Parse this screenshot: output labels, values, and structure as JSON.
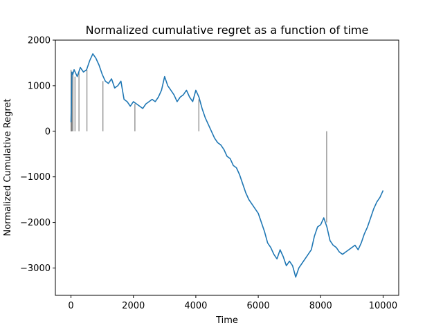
{
  "chart_data": {
    "type": "line",
    "title": "Normalized cumulative regret as a function of time",
    "xlabel": "Time",
    "ylabel": "Normalized Cumulative Regret",
    "xlim": [
      -500,
      10500
    ],
    "ylim": [
      -3600,
      2000
    ],
    "xticks": [
      0,
      2000,
      4000,
      6000,
      8000,
      10000
    ],
    "yticks": [
      -3000,
      -2000,
      -1000,
      0,
      1000,
      2000
    ],
    "xtick_labels": [
      "0",
      "2000",
      "4000",
      "6000",
      "8000",
      "10000"
    ],
    "ytick_labels": [
      "−3000",
      "−2000",
      "−1000",
      "0",
      "1000",
      "2000"
    ],
    "grid": false,
    "line_color": "#1f77b4",
    "restart_color": "#808080",
    "series": [
      {
        "x": [
          0,
          30,
          60,
          100,
          200,
          300,
          400,
          500,
          600,
          700,
          750,
          800,
          900,
          1000,
          1100,
          1200,
          1300,
          1400,
          1500,
          1600,
          1700,
          1800,
          1900,
          2000,
          2100,
          2200,
          2300,
          2400,
          2500,
          2600,
          2700,
          2800,
          2900,
          3000,
          3100,
          3200,
          3300,
          3400,
          3500,
          3600,
          3700,
          3800,
          3900,
          4000,
          4100,
          4200,
          4300,
          4400,
          4500,
          4600,
          4700,
          4800,
          4900,
          5000,
          5100,
          5200,
          5300,
          5400,
          5500,
          5600,
          5700,
          5800,
          5900,
          6000,
          6100,
          6200,
          6300,
          6400,
          6500,
          6600,
          6700,
          6800,
          6900,
          7000,
          7100,
          7200,
          7300,
          7400,
          7500,
          7600,
          7700,
          7800,
          7900,
          8000,
          8100,
          8200,
          8300,
          8400,
          8500,
          8600,
          8700,
          8800,
          8900,
          9000,
          9100,
          9200,
          9300,
          9400,
          9500,
          9600,
          9700,
          9800,
          9900,
          10000
        ],
        "y": [
          200,
          1300,
          1250,
          1350,
          1200,
          1400,
          1300,
          1350,
          1550,
          1700,
          1650,
          1600,
          1450,
          1250,
          1100,
          1050,
          1150,
          950,
          1000,
          1100,
          700,
          650,
          550,
          650,
          600,
          550,
          500,
          600,
          650,
          700,
          650,
          750,
          900,
          1200,
          1000,
          900,
          800,
          650,
          750,
          800,
          900,
          750,
          650,
          900,
          750,
          500,
          300,
          150,
          0,
          -150,
          -250,
          -300,
          -400,
          -550,
          -600,
          -750,
          -800,
          -950,
          -1150,
          -1350,
          -1500,
          -1600,
          -1700,
          -1800,
          -2000,
          -2200,
          -2450,
          -2550,
          -2700,
          -2800,
          -2600,
          -2750,
          -2950,
          -2850,
          -2950,
          -3200,
          -3000,
          -2900,
          -2800,
          -2700,
          -2600,
          -2300,
          -2100,
          -2050,
          -1900,
          -2100,
          -2400,
          -2500,
          -2550,
          -2650,
          -2700,
          -2650,
          -2600,
          -2550,
          -2500,
          -2600,
          -2450,
          -2250,
          -2100,
          -1900,
          -1700,
          -1550,
          -1450,
          -1300
        ],
        "restarts": [
          {
            "x": 1,
            "y": 1350
          },
          {
            "x": 2,
            "y": 1300
          },
          {
            "x": 4,
            "y": 1250
          },
          {
            "x": 8,
            "y": 1200
          },
          {
            "x": 16,
            "y": 1150
          },
          {
            "x": 32,
            "y": 1200
          },
          {
            "x": 64,
            "y": 1250
          },
          {
            "x": 128,
            "y": 1200
          },
          {
            "x": 256,
            "y": 1300
          },
          {
            "x": 512,
            "y": 1350
          },
          {
            "x": 1024,
            "y": 1100
          },
          {
            "x": 2048,
            "y": 600
          },
          {
            "x": 4096,
            "y": 700
          },
          {
            "x": 8192,
            "y": -2000
          }
        ]
      }
    ]
  }
}
